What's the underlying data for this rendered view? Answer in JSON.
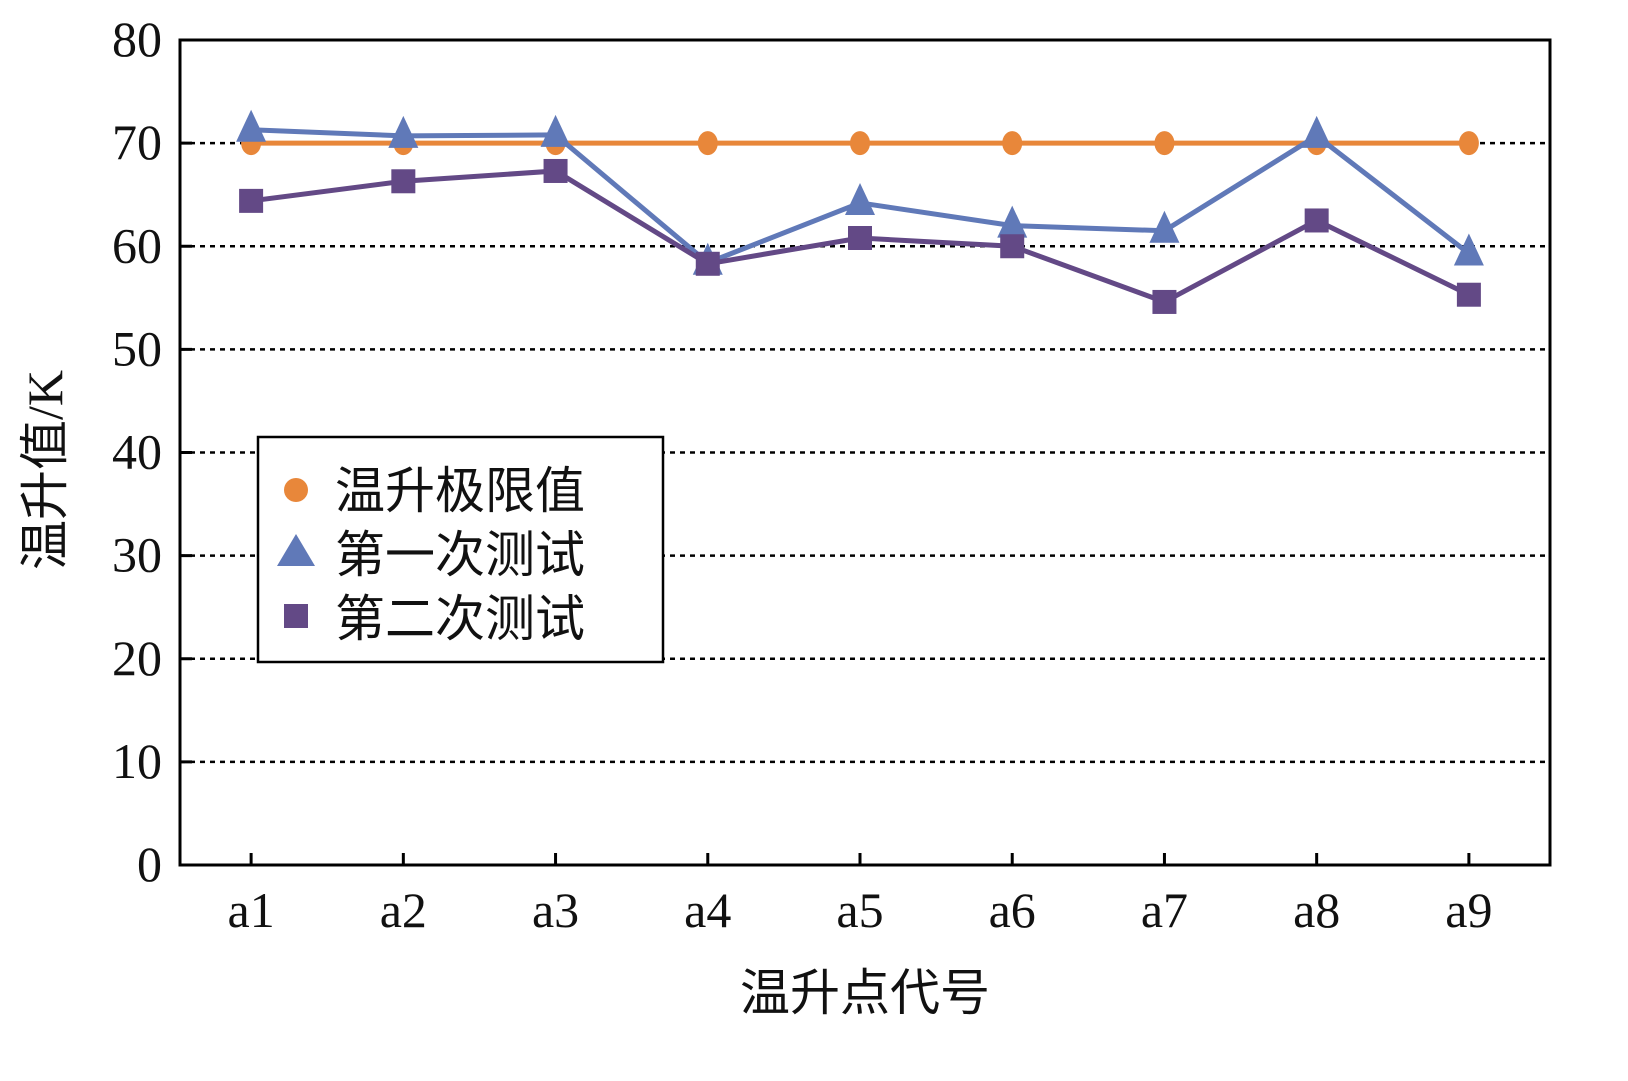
{
  "chart_data": {
    "type": "line",
    "xlabel": "温升点代号",
    "ylabel": "温升值/K",
    "categories": [
      "a1",
      "a2",
      "a3",
      "a4",
      "a5",
      "a6",
      "a7",
      "a8",
      "a9"
    ],
    "ylim": [
      0,
      80
    ],
    "yticks": [
      "0",
      "10",
      "20",
      "30",
      "40",
      "50",
      "60",
      "70",
      "80"
    ],
    "grid": "horizontal dotted",
    "legend_position": "left-middle",
    "series": [
      {
        "name": "温升极限值",
        "marker": "circle",
        "color": "#E8873A",
        "values": [
          70,
          70,
          70,
          70,
          70,
          70,
          70,
          70,
          70
        ]
      },
      {
        "name": "第一次测试",
        "marker": "triangle",
        "color": "#6079B8",
        "values": [
          71.3,
          70.7,
          70.8,
          58.4,
          64.2,
          62.0,
          61.5,
          70.7,
          59.3
        ]
      },
      {
        "name": "第二次测试",
        "marker": "square",
        "color": "#634986",
        "values": [
          64.4,
          66.3,
          67.3,
          58.3,
          60.8,
          60.0,
          54.6,
          62.5,
          55.3
        ]
      }
    ]
  }
}
